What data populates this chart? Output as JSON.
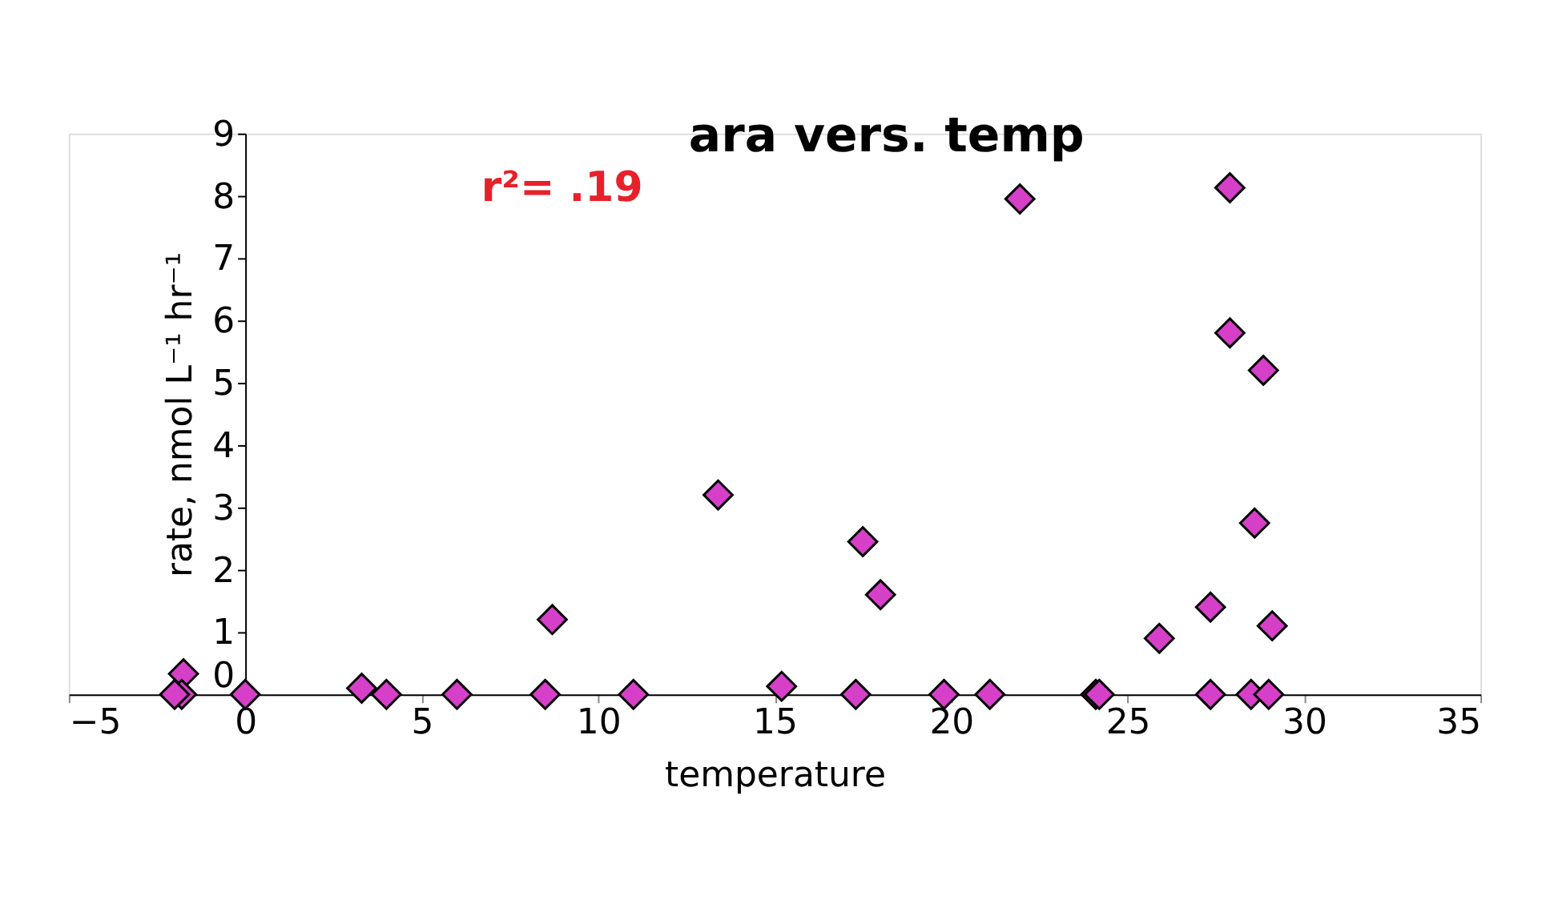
{
  "chart_data": {
    "type": "scatter",
    "title": "ara vers. temp",
    "xlabel": "temperature",
    "ylabel": "rate, nmol L⁻¹ hr⁻¹",
    "annotations": [
      "r²= .19"
    ],
    "xlim": [
      -5,
      35
    ],
    "xticks": [
      -5,
      0,
      5,
      10,
      15,
      20,
      25,
      30,
      35
    ],
    "ylim": [
      0,
      9
    ],
    "yticks": [
      0,
      1,
      2,
      3,
      4,
      5,
      6,
      7,
      8,
      9
    ],
    "grid": false,
    "legend": false,
    "marker": "diamond",
    "series": [
      {
        "color": "#d63fc8",
        "x": [
          -1.75,
          -1.8,
          -2.0,
          0,
          3.3,
          4.0,
          6.0,
          8.5,
          8.7,
          11.0,
          13.4,
          15.2,
          17.3,
          17.5,
          18.0,
          19.8,
          21.1,
          21.95,
          24.1,
          24.2,
          25.9,
          27.35,
          27.35,
          27.9,
          27.9,
          28.5,
          28.6,
          28.85,
          29.0,
          29.1
        ],
        "values": [
          0.33,
          0,
          0,
          0,
          0.1,
          0,
          0,
          0,
          1.2,
          0,
          3.2,
          0.13,
          0,
          2.45,
          1.6,
          0,
          0,
          7.95,
          0,
          0,
          0.9,
          1.4,
          0,
          8.13,
          5.8,
          0,
          2.75,
          5.2,
          0,
          1.1
        ]
      }
    ]
  }
}
